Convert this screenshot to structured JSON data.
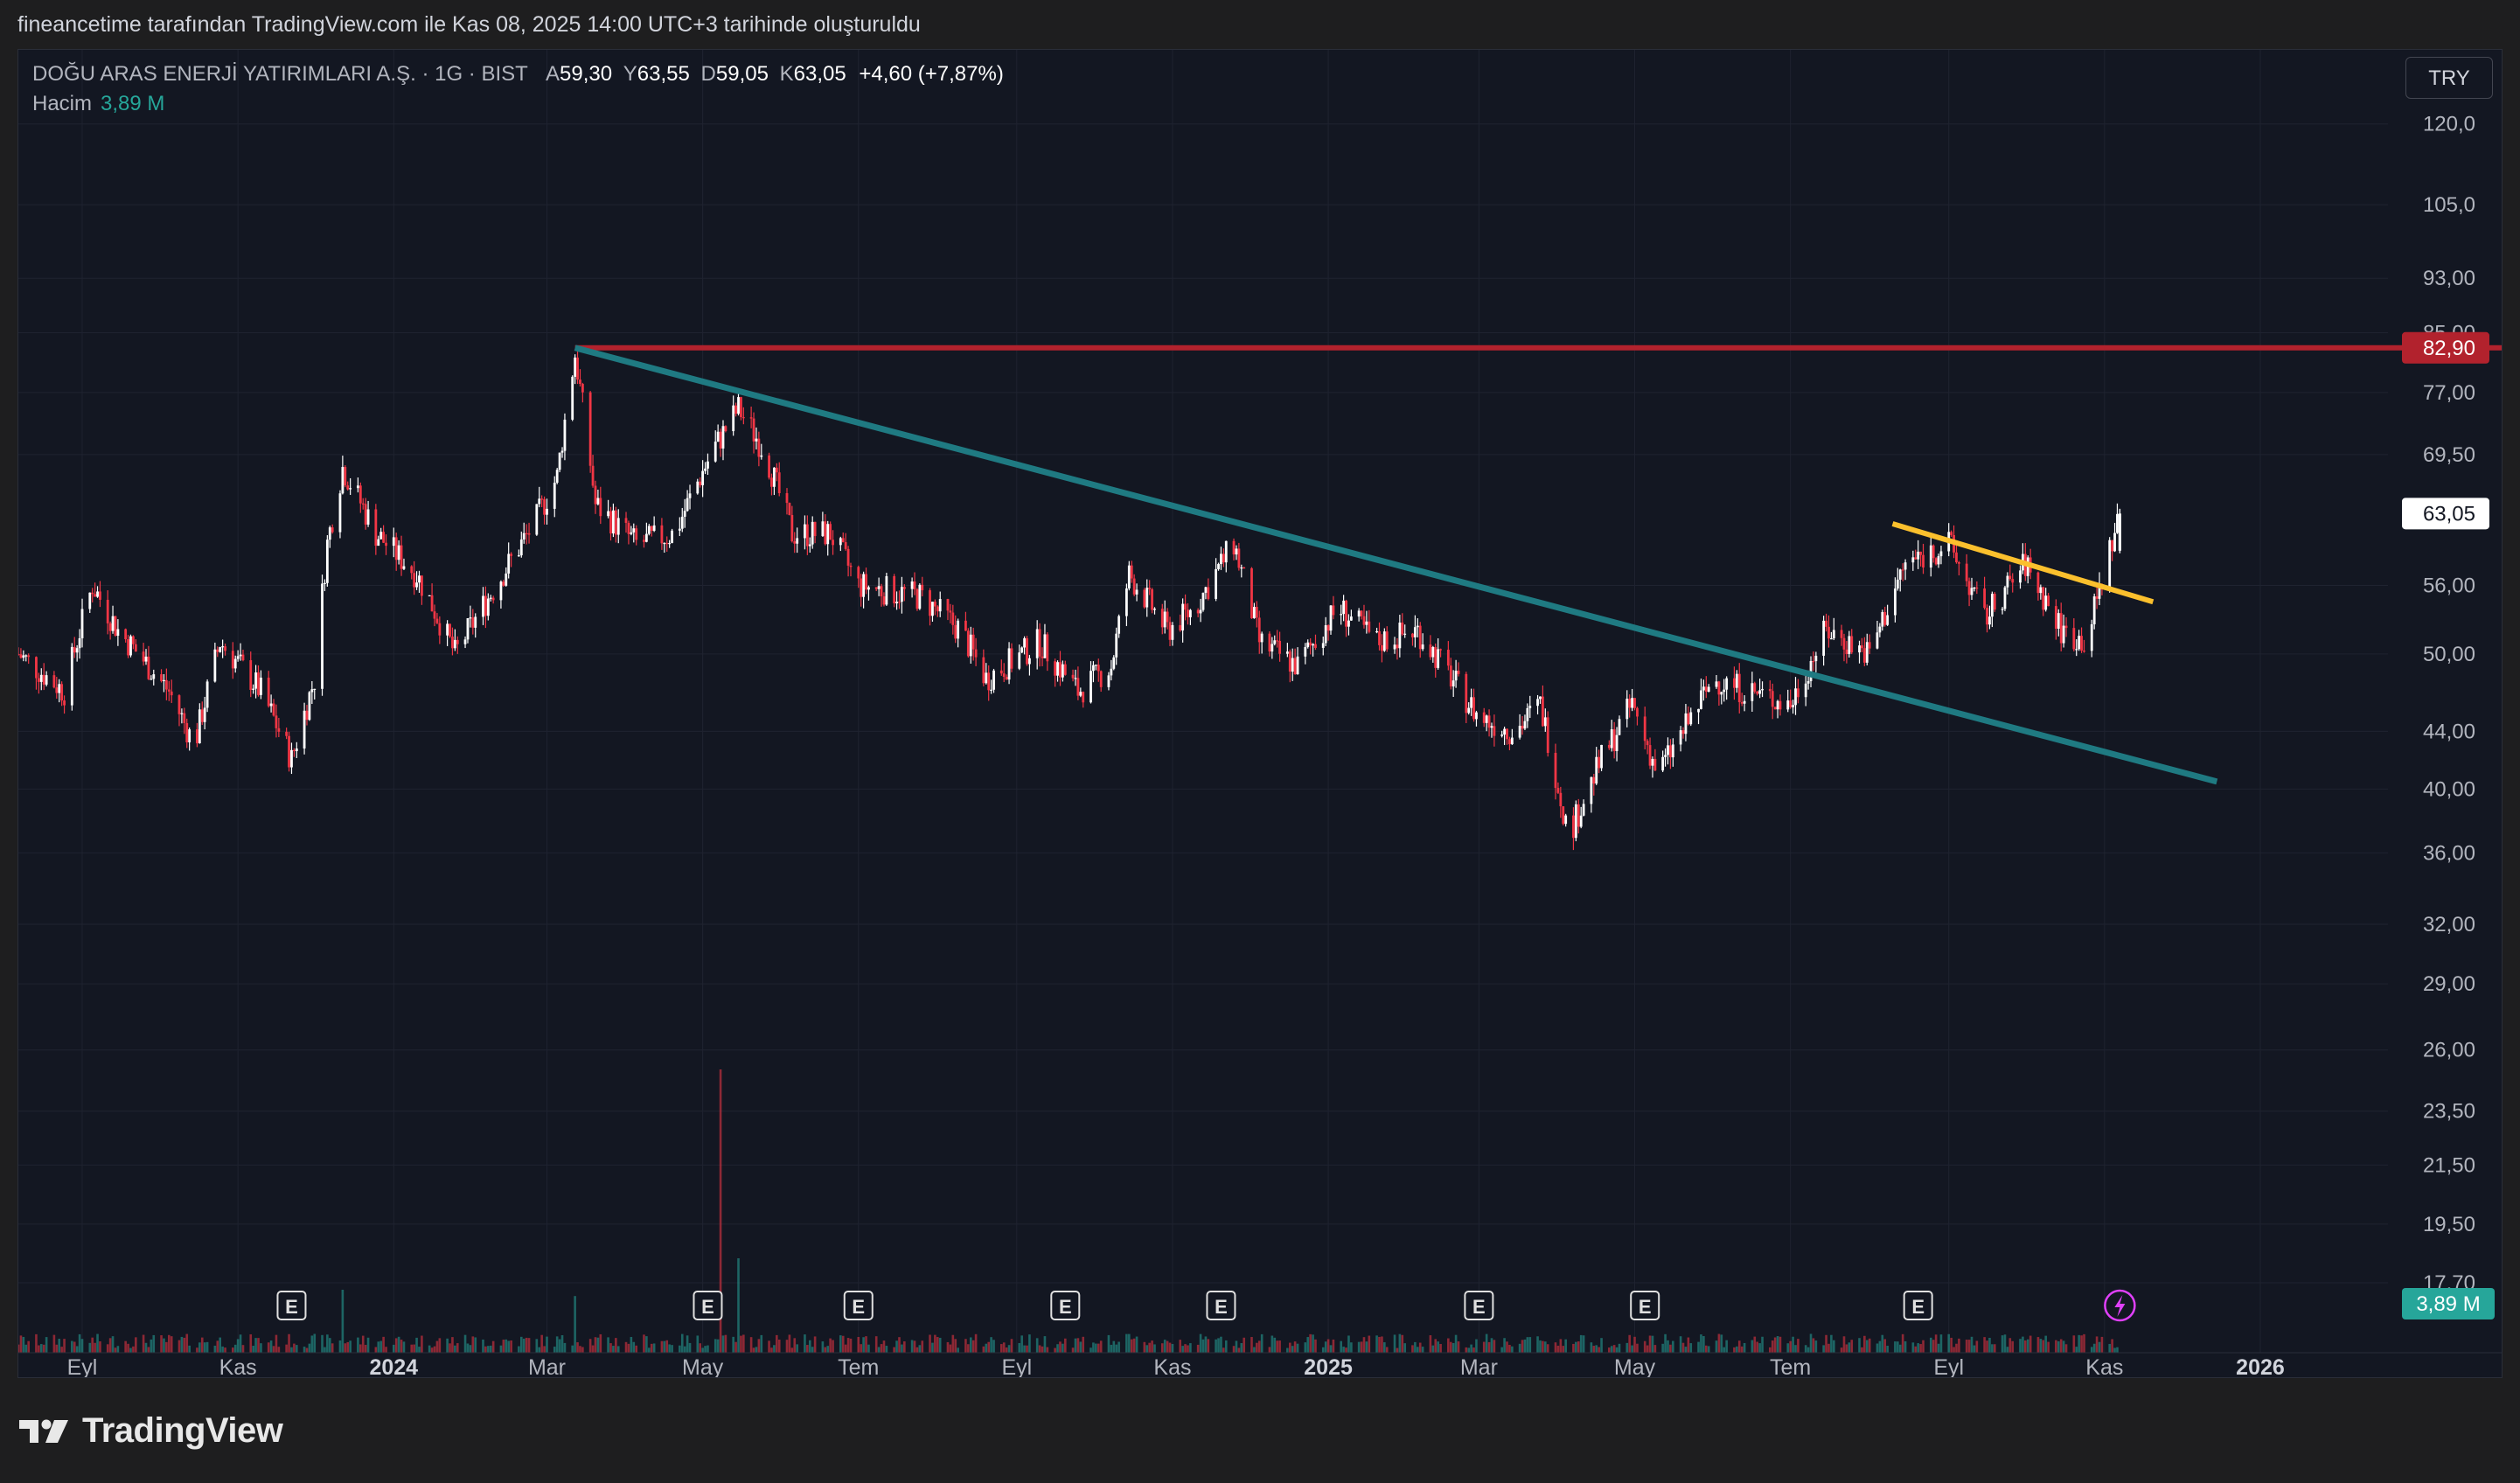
{
  "header": {
    "note": "fineancetime tarafından TradingView.com ile Kas 08, 2025 14:00 UTC+3 tarihinde oluşturuldu"
  },
  "legend": {
    "symbol": "DOĞU ARAS ENERJİ YATIRIMLARI A.Ş. · 1G · BIST",
    "open_label": "A",
    "open": "59,30",
    "high_label": "Y",
    "high": "63,55",
    "low_label": "D",
    "low": "59,05",
    "close_label": "K",
    "close": "63,05",
    "change": "+4,60 (+7,87%)",
    "volume_label": "Hacim",
    "volume": "3,89 M"
  },
  "currency_button": "TRY",
  "brand": {
    "name": "TradingView"
  },
  "colors": {
    "background": "#131722",
    "up": "#ffffff",
    "down": "#f23645",
    "volume_up": "#26a69a",
    "resistance": "#b2222d",
    "downtrend": "#1f7a82",
    "short_trend": "#fbc02d",
    "event_badge": "#e0e0e0"
  },
  "chart_data": {
    "type": "candlestick",
    "timeframe": "1G",
    "y_scale": "log",
    "ylim": [
      17.7,
      128
    ],
    "x_range": [
      "2023-08-07",
      "2026-02-20"
    ],
    "y_ticks": [
      {
        "value": 120,
        "label": "120,0"
      },
      {
        "value": 105,
        "label": "105,0"
      },
      {
        "value": 93,
        "label": "93,00"
      },
      {
        "value": 85,
        "label": "85,00"
      },
      {
        "value": 77,
        "label": "77,00"
      },
      {
        "value": 69.5,
        "label": "69,50"
      },
      {
        "value": 56,
        "label": "56,00"
      },
      {
        "value": 50,
        "label": "50,00"
      },
      {
        "value": 44,
        "label": "44,00"
      },
      {
        "value": 40,
        "label": "40,00"
      },
      {
        "value": 36,
        "label": "36,00"
      },
      {
        "value": 32,
        "label": "32,00"
      },
      {
        "value": 29,
        "label": "29,00"
      },
      {
        "value": 26,
        "label": "26,00"
      },
      {
        "value": 23.5,
        "label": "23,50"
      },
      {
        "value": 21.5,
        "label": "21,50"
      },
      {
        "value": 19.5,
        "label": "19,50"
      },
      {
        "value": 17.7,
        "label": "17,70"
      }
    ],
    "x_ticks": [
      {
        "date": "2023-09-01",
        "label": "Eyl",
        "bold": false
      },
      {
        "date": "2023-11-01",
        "label": "Kas",
        "bold": false
      },
      {
        "date": "2024-01-01",
        "label": "2024",
        "bold": true
      },
      {
        "date": "2024-03-01",
        "label": "Mar",
        "bold": false
      },
      {
        "date": "2024-05-01",
        "label": "May",
        "bold": false
      },
      {
        "date": "2024-07-01",
        "label": "Tem",
        "bold": false
      },
      {
        "date": "2024-09-01",
        "label": "Eyl",
        "bold": false
      },
      {
        "date": "2024-11-01",
        "label": "Kas",
        "bold": false
      },
      {
        "date": "2025-01-01",
        "label": "2025",
        "bold": true
      },
      {
        "date": "2025-03-01",
        "label": "Mar",
        "bold": false
      },
      {
        "date": "2025-05-01",
        "label": "May",
        "bold": false
      },
      {
        "date": "2025-07-01",
        "label": "Tem",
        "bold": false
      },
      {
        "date": "2025-09-01",
        "label": "Eyl",
        "bold": false
      },
      {
        "date": "2025-11-01",
        "label": "Kas",
        "bold": false
      },
      {
        "date": "2026-01-01",
        "label": "2026",
        "bold": true
      }
    ],
    "price_path": [
      [
        "2023-08-07",
        50
      ],
      [
        "2023-08-25",
        47
      ],
      [
        "2023-09-05",
        56
      ],
      [
        "2023-09-15",
        52
      ],
      [
        "2023-10-05",
        47
      ],
      [
        "2023-10-15",
        43
      ],
      [
        "2023-10-25",
        51
      ],
      [
        "2023-11-10",
        47
      ],
      [
        "2023-11-22",
        42
      ],
      [
        "2023-12-01",
        48
      ],
      [
        "2023-12-06",
        60
      ],
      [
        "2023-12-12",
        68
      ],
      [
        "2023-12-25",
        61
      ],
      [
        "2024-01-10",
        57
      ],
      [
        "2024-01-25",
        50
      ],
      [
        "2024-02-10",
        56
      ],
      [
        "2024-02-25",
        62
      ],
      [
        "2024-03-05",
        67
      ],
      [
        "2024-03-12",
        82
      ],
      [
        "2024-03-20",
        64
      ],
      [
        "2024-04-05",
        60
      ],
      [
        "2024-04-20",
        61
      ],
      [
        "2024-05-05",
        70
      ],
      [
        "2024-05-15",
        75
      ],
      [
        "2024-05-25",
        70
      ],
      [
        "2024-06-05",
        61
      ],
      [
        "2024-06-20",
        61
      ],
      [
        "2024-07-01",
        56
      ],
      [
        "2024-07-25",
        55
      ],
      [
        "2024-08-10",
        52
      ],
      [
        "2024-08-20",
        48
      ],
      [
        "2024-09-10",
        51
      ],
      [
        "2024-09-25",
        47
      ],
      [
        "2024-10-08",
        49
      ],
      [
        "2024-10-15",
        57
      ],
      [
        "2024-10-30",
        52
      ],
      [
        "2024-11-10",
        54
      ],
      [
        "2024-11-25",
        60
      ],
      [
        "2024-12-05",
        51
      ],
      [
        "2024-12-20",
        49
      ],
      [
        "2025-01-05",
        54
      ],
      [
        "2025-01-20",
        51
      ],
      [
        "2025-02-05",
        52
      ],
      [
        "2025-02-15",
        49
      ],
      [
        "2025-03-01",
        45
      ],
      [
        "2025-03-15",
        44
      ],
      [
        "2025-03-25",
        46
      ],
      [
        "2025-04-05",
        37
      ],
      [
        "2025-04-18",
        42
      ],
      [
        "2025-04-30",
        46
      ],
      [
        "2025-05-10",
        41
      ],
      [
        "2025-05-20",
        44
      ],
      [
        "2025-06-01",
        48
      ],
      [
        "2025-06-15",
        47
      ],
      [
        "2025-07-01",
        46
      ],
      [
        "2025-07-15",
        52
      ],
      [
        "2025-08-01",
        50
      ],
      [
        "2025-08-15",
        58
      ],
      [
        "2025-09-01",
        60
      ],
      [
        "2025-09-15",
        53
      ],
      [
        "2025-10-01",
        58
      ],
      [
        "2025-10-15",
        52
      ],
      [
        "2025-10-25",
        51
      ],
      [
        "2025-11-07",
        63.05
      ]
    ],
    "last_candle": {
      "date": "2025-11-07",
      "open": 59.3,
      "high": 63.55,
      "low": 59.05,
      "close": 63.05
    },
    "volume_spikes": [
      [
        "2023-12-12",
        4
      ],
      [
        "2024-03-12",
        3.6
      ],
      [
        "2024-05-08",
        18
      ],
      [
        "2024-05-15",
        6
      ]
    ],
    "annotations": {
      "resistance": {
        "price": 82.9,
        "from": "2024-03-12",
        "label": "82,90"
      },
      "downtrend_line": {
        "from": [
          "2024-03-12",
          82.9
        ],
        "to": [
          "2025-12-15",
          40.5
        ]
      },
      "short_trend_line": {
        "from": [
          "2025-08-10",
          62
        ],
        "to": [
          "2025-11-20",
          54.5
        ]
      },
      "last_price_label": "63,05",
      "volume_label": "3,89 M",
      "earnings_dates": [
        "2023-11-22",
        "2024-05-03",
        "2024-07-01",
        "2024-09-20",
        "2024-11-20",
        "2025-03-01",
        "2025-05-05",
        "2025-08-20"
      ],
      "earnings_letter": "E",
      "dividend_date": "2025-11-07"
    }
  }
}
